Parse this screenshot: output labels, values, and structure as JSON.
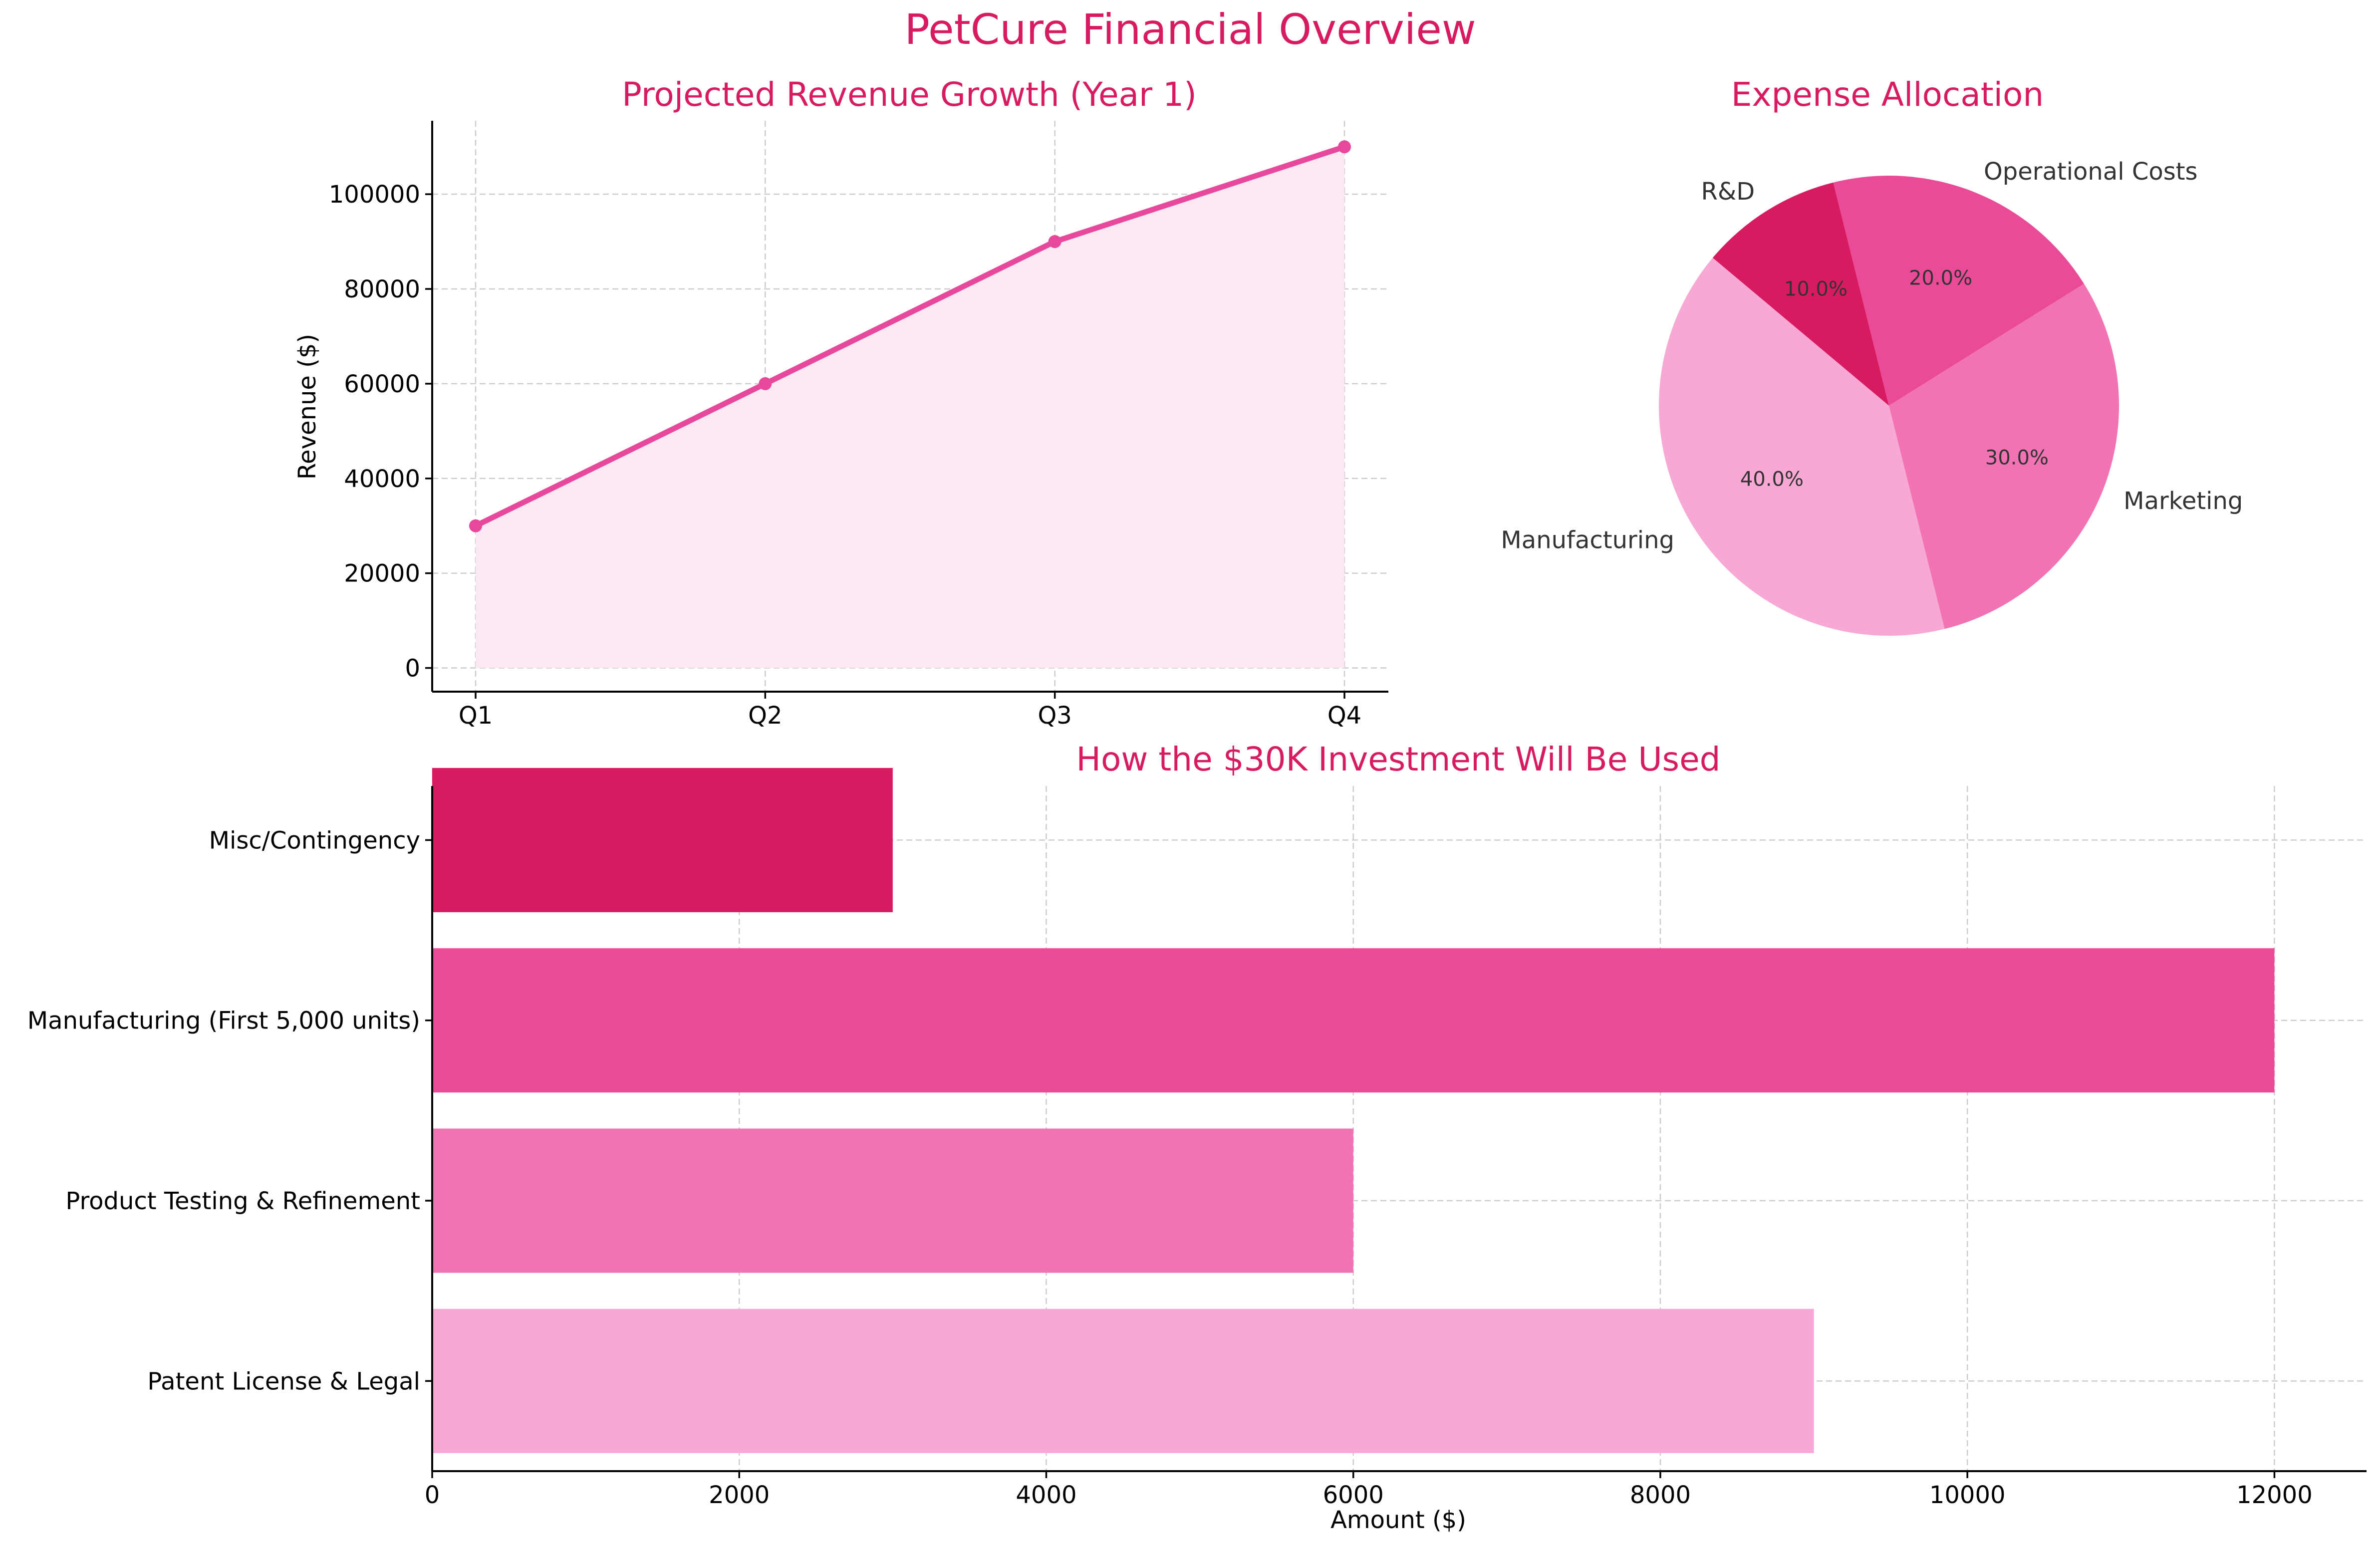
{
  "title": "PetCure Financial Overview",
  "colors": {
    "title": "#d81b60",
    "line": "#e8489b",
    "fill": "#fce8f3",
    "pie": [
      "#d81b60",
      "#ea4a98",
      "#f173b3",
      "#f7a8d4"
    ],
    "bars": [
      "#f7a8d4",
      "#f173b3",
      "#ea4a98",
      "#d81b60"
    ]
  },
  "chart_data": [
    {
      "type": "line",
      "title": "Projected Revenue Growth (Year 1)",
      "xlabel": "",
      "ylabel": "Revenue ($)",
      "categories": [
        "Q1",
        "Q2",
        "Q3",
        "Q4"
      ],
      "values": [
        30000,
        60000,
        90000,
        110000
      ],
      "ylim": [
        -5000,
        115500
      ],
      "yticks": [
        0,
        20000,
        40000,
        60000,
        80000,
        100000
      ],
      "fill_under": true,
      "markers": true,
      "grid": true
    },
    {
      "type": "pie",
      "title": "Expense Allocation",
      "labels": [
        "R&D",
        "Operational Costs",
        "Marketing",
        "Manufacturing"
      ],
      "values": [
        10,
        20,
        30,
        40
      ],
      "pct_labels": [
        "10.0%",
        "20.0%",
        "30.0%",
        "40.0%"
      ],
      "start_angle": 140,
      "counterclock": false
    },
    {
      "type": "bar",
      "orientation": "horizontal",
      "title": "How the $30K Investment Will Be Used",
      "xlabel": "Amount ($)",
      "ylabel": "",
      "categories": [
        "Patent License & Legal",
        "Product Testing & Refinement",
        "Manufacturing (First 5,000 units)",
        "Misc/Contingency"
      ],
      "values": [
        9000,
        6000,
        12000,
        3000
      ],
      "xlim": [
        0,
        12600
      ],
      "xticks": [
        0,
        2000,
        4000,
        6000,
        8000,
        10000,
        12000
      ],
      "grid": true
    }
  ]
}
